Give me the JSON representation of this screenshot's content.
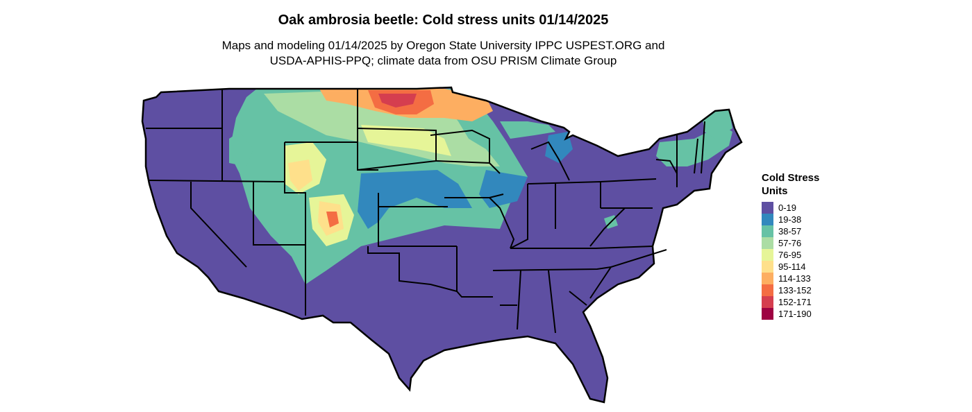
{
  "title": "Oak ambrosia beetle: Cold stress units 01/14/2025",
  "subtitle_line1": "Maps and modeling 01/14/2025 by Oregon State University IPPC USPEST.ORG and",
  "subtitle_line2": "USDA-APHIS-PPQ; climate data from OSU PRISM Climate Group",
  "legend": {
    "title_line1": "Cold Stress",
    "title_line2": "Units",
    "items": [
      {
        "label": "0-19",
        "color": "#5E4FA2"
      },
      {
        "label": "19-38",
        "color": "#3288BD"
      },
      {
        "label": "38-57",
        "color": "#66C2A5"
      },
      {
        "label": "57-76",
        "color": "#ABDDA4"
      },
      {
        "label": "76-95",
        "color": "#E6F598"
      },
      {
        "label": "95-114",
        "color": "#FEE08B"
      },
      {
        "label": "114-133",
        "color": "#FDAE61"
      },
      {
        "label": "133-152",
        "color": "#F46D43"
      },
      {
        "label": "152-171",
        "color": "#D53E4F"
      },
      {
        "label": "171-190",
        "color": "#9E0142"
      }
    ]
  }
}
